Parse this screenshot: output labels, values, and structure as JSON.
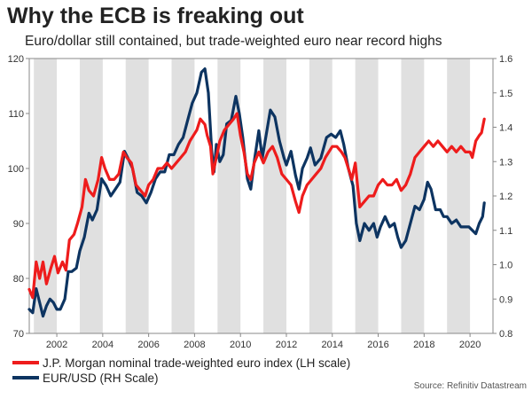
{
  "header": {
    "title": "Why the ECB is freaking out",
    "subtitle": "Euro/dollar still contained, but trade-weighted euro near record highs"
  },
  "footer": {
    "source": "Source: Refinitiv Datastream"
  },
  "colors": {
    "euro_index": "#ee1c1c",
    "eurusd": "#0d3461",
    "band": "#e0e0e0",
    "axis": "#888888",
    "text": "#333333"
  },
  "chart_data": {
    "type": "line",
    "x_range": [
      2000.8,
      2021.0
    ],
    "x_ticks": [
      "2002",
      "2004",
      "2006",
      "2008",
      "2010",
      "2012",
      "2014",
      "2016",
      "2018",
      "2020"
    ],
    "shaded_years": [
      2001,
      2003,
      2005,
      2007,
      2009,
      2011,
      2013,
      2015,
      2017,
      2019
    ],
    "y_left": {
      "range": [
        70,
        120
      ],
      "ticks": [
        "70",
        "80",
        "90",
        "100",
        "110",
        "120"
      ],
      "label": "LH scale"
    },
    "y_right": {
      "range": [
        0.8,
        1.6
      ],
      "ticks": [
        "0.8",
        "0.9",
        "1.0",
        "1.1",
        "1.2",
        "1.3",
        "1.4",
        "1.5",
        "1.6"
      ],
      "label": "RH Scale"
    },
    "series": [
      {
        "name": "J.P. Morgan nominal trade-weighted euro index (LH scale)",
        "axis": "left",
        "points": [
          [
            2000.8,
            78
          ],
          [
            2000.95,
            76.5
          ],
          [
            2001.1,
            83
          ],
          [
            2001.25,
            80
          ],
          [
            2001.4,
            83
          ],
          [
            2001.55,
            79
          ],
          [
            2001.75,
            82
          ],
          [
            2001.9,
            84
          ],
          [
            2002.05,
            81
          ],
          [
            2002.25,
            83
          ],
          [
            2002.4,
            81.5
          ],
          [
            2002.55,
            87
          ],
          [
            2002.75,
            88
          ],
          [
            2002.9,
            90
          ],
          [
            2003.1,
            93
          ],
          [
            2003.25,
            98
          ],
          [
            2003.4,
            96
          ],
          [
            2003.6,
            95
          ],
          [
            2003.8,
            98
          ],
          [
            2003.95,
            102
          ],
          [
            2004.1,
            100
          ],
          [
            2004.3,
            98
          ],
          [
            2004.5,
            98
          ],
          [
            2004.7,
            99
          ],
          [
            2004.9,
            103
          ],
          [
            2005.05,
            102
          ],
          [
            2005.25,
            101
          ],
          [
            2005.45,
            97
          ],
          [
            2005.65,
            96
          ],
          [
            2005.85,
            95
          ],
          [
            2006.0,
            97
          ],
          [
            2006.2,
            98
          ],
          [
            2006.4,
            100
          ],
          [
            2006.6,
            100
          ],
          [
            2006.8,
            101
          ],
          [
            2007.0,
            100
          ],
          [
            2007.2,
            101
          ],
          [
            2007.4,
            102
          ],
          [
            2007.6,
            103
          ],
          [
            2007.8,
            105
          ],
          [
            2007.95,
            106
          ],
          [
            2008.1,
            107
          ],
          [
            2008.25,
            109
          ],
          [
            2008.45,
            108
          ],
          [
            2008.55,
            106
          ],
          [
            2008.7,
            104
          ],
          [
            2008.8,
            99
          ],
          [
            2008.95,
            102
          ],
          [
            2009.1,
            105
          ],
          [
            2009.3,
            107
          ],
          [
            2009.5,
            108
          ],
          [
            2009.7,
            109
          ],
          [
            2009.85,
            110
          ],
          [
            2010.0,
            106
          ],
          [
            2010.15,
            103
          ],
          [
            2010.3,
            99
          ],
          [
            2010.45,
            98
          ],
          [
            2010.6,
            101
          ],
          [
            2010.8,
            103
          ],
          [
            2011.0,
            101
          ],
          [
            2011.2,
            103
          ],
          [
            2011.4,
            104
          ],
          [
            2011.6,
            102
          ],
          [
            2011.8,
            99
          ],
          [
            2012.0,
            98
          ],
          [
            2012.2,
            97
          ],
          [
            2012.4,
            94
          ],
          [
            2012.55,
            92
          ],
          [
            2012.7,
            95
          ],
          [
            2012.9,
            97
          ],
          [
            2013.1,
            98
          ],
          [
            2013.3,
            99
          ],
          [
            2013.5,
            100
          ],
          [
            2013.7,
            102
          ],
          [
            2013.85,
            103
          ],
          [
            2014.0,
            104
          ],
          [
            2014.2,
            104
          ],
          [
            2014.4,
            103
          ],
          [
            2014.55,
            102
          ],
          [
            2014.7,
            100
          ],
          [
            2014.85,
            98
          ],
          [
            2015.0,
            101
          ],
          [
            2015.1,
            97
          ],
          [
            2015.2,
            93
          ],
          [
            2015.4,
            94
          ],
          [
            2015.6,
            95
          ],
          [
            2015.8,
            95
          ],
          [
            2016.0,
            97
          ],
          [
            2016.2,
            98
          ],
          [
            2016.4,
            97
          ],
          [
            2016.6,
            97
          ],
          [
            2016.8,
            98
          ],
          [
            2017.0,
            96
          ],
          [
            2017.2,
            97
          ],
          [
            2017.4,
            99
          ],
          [
            2017.6,
            102
          ],
          [
            2017.8,
            103
          ],
          [
            2018.0,
            104
          ],
          [
            2018.2,
            105
          ],
          [
            2018.4,
            104
          ],
          [
            2018.6,
            105
          ],
          [
            2018.8,
            104
          ],
          [
            2019.0,
            103
          ],
          [
            2019.2,
            104
          ],
          [
            2019.4,
            103
          ],
          [
            2019.6,
            104
          ],
          [
            2019.8,
            103
          ],
          [
            2020.0,
            103
          ],
          [
            2020.1,
            102
          ],
          [
            2020.25,
            105
          ],
          [
            2020.4,
            106
          ],
          [
            2020.5,
            106.5
          ],
          [
            2020.62,
            109
          ]
        ]
      },
      {
        "name": "EUR/USD (RH Scale)",
        "axis": "right",
        "points": [
          [
            2000.8,
            0.87
          ],
          [
            2000.95,
            0.86
          ],
          [
            2001.1,
            0.93
          ],
          [
            2001.25,
            0.89
          ],
          [
            2001.4,
            0.85
          ],
          [
            2001.55,
            0.88
          ],
          [
            2001.7,
            0.9
          ],
          [
            2001.85,
            0.89
          ],
          [
            2002.0,
            0.87
          ],
          [
            2002.15,
            0.87
          ],
          [
            2002.35,
            0.9
          ],
          [
            2002.5,
            0.98
          ],
          [
            2002.65,
            0.98
          ],
          [
            2002.85,
            0.99
          ],
          [
            2003.0,
            1.04
          ],
          [
            2003.2,
            1.08
          ],
          [
            2003.4,
            1.15
          ],
          [
            2003.55,
            1.13
          ],
          [
            2003.75,
            1.16
          ],
          [
            2003.95,
            1.25
          ],
          [
            2004.15,
            1.23
          ],
          [
            2004.35,
            1.2
          ],
          [
            2004.55,
            1.22
          ],
          [
            2004.75,
            1.24
          ],
          [
            2004.95,
            1.33
          ],
          [
            2005.1,
            1.31
          ],
          [
            2005.3,
            1.28
          ],
          [
            2005.5,
            1.21
          ],
          [
            2005.7,
            1.2
          ],
          [
            2005.9,
            1.18
          ],
          [
            2006.1,
            1.21
          ],
          [
            2006.3,
            1.25
          ],
          [
            2006.5,
            1.27
          ],
          [
            2006.7,
            1.27
          ],
          [
            2006.9,
            1.32
          ],
          [
            2007.1,
            1.32
          ],
          [
            2007.3,
            1.35
          ],
          [
            2007.5,
            1.37
          ],
          [
            2007.7,
            1.42
          ],
          [
            2007.9,
            1.47
          ],
          [
            2008.1,
            1.5
          ],
          [
            2008.3,
            1.56
          ],
          [
            2008.45,
            1.57
          ],
          [
            2008.6,
            1.5
          ],
          [
            2008.75,
            1.33
          ],
          [
            2008.85,
            1.27
          ],
          [
            2008.95,
            1.35
          ],
          [
            2009.1,
            1.3
          ],
          [
            2009.25,
            1.32
          ],
          [
            2009.4,
            1.41
          ],
          [
            2009.6,
            1.42
          ],
          [
            2009.8,
            1.49
          ],
          [
            2009.95,
            1.44
          ],
          [
            2010.1,
            1.37
          ],
          [
            2010.3,
            1.25
          ],
          [
            2010.45,
            1.22
          ],
          [
            2010.6,
            1.3
          ],
          [
            2010.8,
            1.39
          ],
          [
            2010.95,
            1.31
          ],
          [
            2011.1,
            1.37
          ],
          [
            2011.3,
            1.45
          ],
          [
            2011.5,
            1.43
          ],
          [
            2011.7,
            1.36
          ],
          [
            2011.9,
            1.31
          ],
          [
            2012.0,
            1.29
          ],
          [
            2012.2,
            1.33
          ],
          [
            2012.4,
            1.26
          ],
          [
            2012.55,
            1.22
          ],
          [
            2012.7,
            1.28
          ],
          [
            2012.9,
            1.31
          ],
          [
            2013.05,
            1.34
          ],
          [
            2013.25,
            1.29
          ],
          [
            2013.5,
            1.31
          ],
          [
            2013.75,
            1.37
          ],
          [
            2013.95,
            1.38
          ],
          [
            2014.15,
            1.37
          ],
          [
            2014.35,
            1.39
          ],
          [
            2014.5,
            1.35
          ],
          [
            2014.7,
            1.28
          ],
          [
            2014.9,
            1.23
          ],
          [
            2015.05,
            1.12
          ],
          [
            2015.2,
            1.07
          ],
          [
            2015.4,
            1.12
          ],
          [
            2015.6,
            1.1
          ],
          [
            2015.8,
            1.12
          ],
          [
            2015.95,
            1.08
          ],
          [
            2016.1,
            1.11
          ],
          [
            2016.3,
            1.14
          ],
          [
            2016.5,
            1.11
          ],
          [
            2016.7,
            1.12
          ],
          [
            2016.85,
            1.08
          ],
          [
            2017.0,
            1.05
          ],
          [
            2017.2,
            1.07
          ],
          [
            2017.4,
            1.12
          ],
          [
            2017.6,
            1.17
          ],
          [
            2017.8,
            1.16
          ],
          [
            2018.0,
            1.19
          ],
          [
            2018.15,
            1.24
          ],
          [
            2018.3,
            1.22
          ],
          [
            2018.5,
            1.16
          ],
          [
            2018.7,
            1.16
          ],
          [
            2018.85,
            1.14
          ],
          [
            2019.0,
            1.14
          ],
          [
            2019.2,
            1.12
          ],
          [
            2019.4,
            1.13
          ],
          [
            2019.6,
            1.11
          ],
          [
            2019.8,
            1.11
          ],
          [
            2019.95,
            1.11
          ],
          [
            2020.1,
            1.1
          ],
          [
            2020.25,
            1.09
          ],
          [
            2020.4,
            1.12
          ],
          [
            2020.55,
            1.14
          ],
          [
            2020.62,
            1.18
          ]
        ]
      }
    ]
  }
}
